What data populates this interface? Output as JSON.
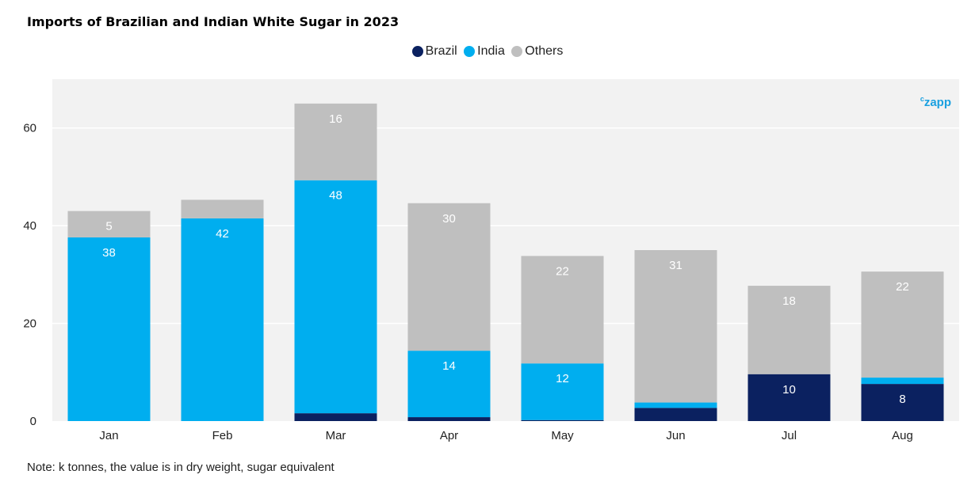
{
  "title": "Imports of Brazilian and Indian White Sugar in 2023",
  "note": "Note: k tonnes, the value is in dry weight, sugar equivalent",
  "brand": {
    "prefix": "c",
    "name": "zapp"
  },
  "colors": {
    "Brazil": "#0b2160",
    "India": "#00aeef",
    "Others": "#bfbfbf",
    "plot_bg": "#f2f2f2",
    "grid": "#ffffff"
  },
  "chart_data": {
    "type": "bar",
    "stacked": true,
    "categories": [
      "Jan",
      "Feb",
      "Mar",
      "Apr",
      "May",
      "Jun",
      "Jul",
      "Aug"
    ],
    "series": [
      {
        "name": "Brazil",
        "values": [
          0,
          0,
          1.6,
          0.8,
          0.2,
          2.7,
          9.6,
          7.6
        ],
        "labels": [
          "",
          "",
          "",
          "",
          "",
          "",
          "10",
          "8"
        ]
      },
      {
        "name": "India",
        "values": [
          37.6,
          41.5,
          47.7,
          13.6,
          11.6,
          1.1,
          0,
          1.3
        ],
        "labels": [
          "38",
          "42",
          "48",
          "14",
          "12",
          "",
          "",
          ""
        ]
      },
      {
        "name": "Others",
        "values": [
          5.4,
          3.8,
          15.7,
          30.2,
          22.0,
          31.2,
          18.1,
          21.7
        ],
        "labels": [
          "5",
          "",
          "16",
          "30",
          "22",
          "31",
          "18",
          "22"
        ]
      }
    ],
    "ylim": [
      0,
      70
    ],
    "yticks": [
      0,
      20,
      40,
      60
    ],
    "legend": "top-center",
    "grid": true
  }
}
